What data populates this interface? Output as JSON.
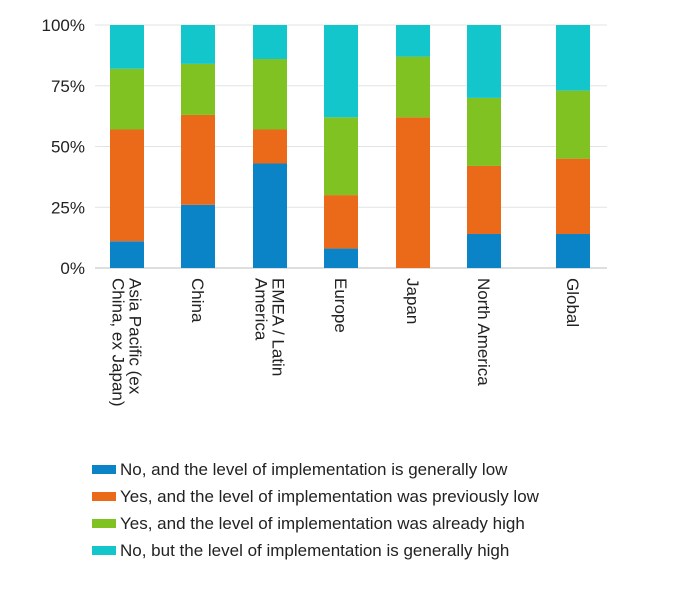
{
  "chart_data": {
    "type": "bar",
    "stacked": true,
    "categories": [
      [
        "Asia Pacific (ex",
        "China, ex Japan)"
      ],
      [
        "China"
      ],
      [
        "EMEA / Latin",
        "America"
      ],
      [
        "Europe"
      ],
      [
        "Japan"
      ],
      [
        "North America"
      ],
      [
        "Global"
      ]
    ],
    "yticks": [
      "0%",
      "25%",
      "50%",
      "75%",
      "100%"
    ],
    "ylim": [
      0,
      100
    ],
    "grid": true,
    "legend_position": "bottom",
    "series": [
      {
        "name": "No, and the level of implementation is generally low",
        "color": "#0a84c6",
        "values": [
          11,
          26,
          43,
          8,
          0,
          14,
          14
        ]
      },
      {
        "name": "Yes, and the level of implementation was previously low",
        "color": "#ea6a1a",
        "values": [
          46,
          37,
          14,
          22,
          62,
          28,
          31
        ]
      },
      {
        "name": "Yes, and the level of implementation was already high",
        "color": "#7fc221",
        "values": [
          25,
          21,
          29,
          32,
          25,
          28,
          28
        ]
      },
      {
        "name": "No, but the level of implementation is generally high",
        "color": "#13c6cb",
        "values": [
          18,
          16,
          14,
          38,
          13,
          30,
          27
        ]
      }
    ]
  }
}
